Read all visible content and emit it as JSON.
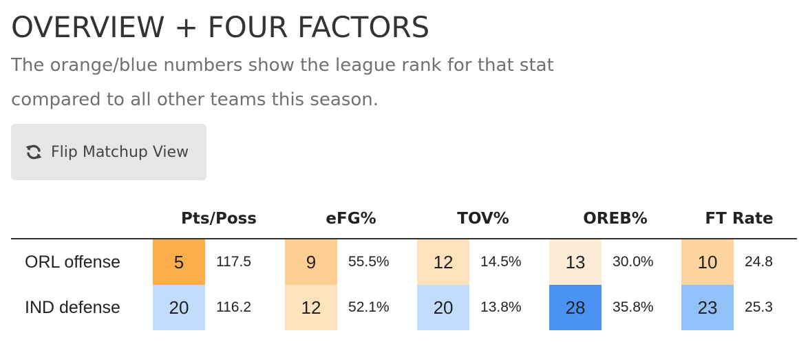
{
  "header": {
    "title": "OVERVIEW + FOUR FACTORS",
    "subtitle": "The orange/blue numbers show the league rank for that stat compared to all other teams this season."
  },
  "flip_button": {
    "icon": "refresh-icon",
    "label": "Flip Matchup View"
  },
  "table": {
    "columns": [
      "Pts/Poss",
      "eFG%",
      "TOV%",
      "OREB%",
      "FT Rate"
    ],
    "rows": [
      {
        "team": "ORL offense",
        "cells": [
          {
            "rank": "5",
            "value": "117.5",
            "color": "#fdae4b"
          },
          {
            "rank": "9",
            "value": "55.5%",
            "color": "#fdcf93"
          },
          {
            "rank": "12",
            "value": "14.5%",
            "color": "#fee2bd"
          },
          {
            "rank": "13",
            "value": "30.0%",
            "color": "#feedd6"
          },
          {
            "rank": "10",
            "value": "24.8",
            "color": "#fdd49d"
          }
        ]
      },
      {
        "team": "IND defense",
        "cells": [
          {
            "rank": "20",
            "value": "116.2",
            "color": "#c2dcfb"
          },
          {
            "rank": "12",
            "value": "52.1%",
            "color": "#fee2bd"
          },
          {
            "rank": "20",
            "value": "13.8%",
            "color": "#c2dcfb"
          },
          {
            "rank": "28",
            "value": "35.8%",
            "color": "#4a93f5"
          },
          {
            "rank": "23",
            "value": "25.3",
            "color": "#92c0f9"
          }
        ]
      }
    ]
  }
}
